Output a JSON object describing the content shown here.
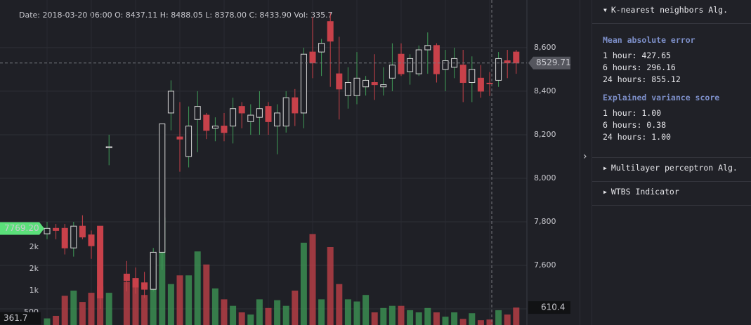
{
  "chart_data": {
    "type": "candlestick",
    "info": "Date: 2018-03-20 06:00 O: 8437.11 H: 8488.05 L: 8378.00 C: 8433.90 Vol: 335.7",
    "open": [
      7745,
      7770,
      7770,
      7680,
      7780,
      7740,
      7780,
      8140,
      null,
      7560,
      7540,
      7520,
      7490,
      7660,
      8300,
      8190,
      8100,
      8270,
      8290,
      8230,
      8240,
      8240,
      8330,
      8260,
      8280,
      8330,
      8240,
      8240,
      8370,
      8300,
      8580,
      8580,
      8720,
      8480,
      8380,
      8380,
      8420,
      8440,
      8420,
      8460,
      8570,
      8490,
      8480,
      8590,
      8610,
      8500,
      8510,
      8520,
      8440,
      8460,
      8437.11,
      8450,
      8540,
      8580
    ],
    "high": [
      7800,
      7790,
      7790,
      7800,
      7830,
      7760,
      7780,
      8200,
      null,
      7620,
      7590,
      7570,
      7680,
      8250,
      8450,
      8350,
      8330,
      8400,
      8300,
      8280,
      8300,
      8370,
      8350,
      8340,
      8400,
      8350,
      8340,
      8400,
      8410,
      8600,
      8740,
      8640,
      8760,
      8650,
      8510,
      8580,
      8470,
      8570,
      8510,
      8620,
      8620,
      8570,
      8610,
      8670,
      8620,
      8590,
      8600,
      8590,
      8560,
      8520,
      8488.05,
      8580,
      8590,
      8590
    ],
    "low": [
      7720,
      7720,
      7650,
      7640,
      7720,
      7630,
      7400,
      8060,
      null,
      7480,
      7470,
      7450,
      7480,
      7580,
      8220,
      8030,
      8050,
      8120,
      8180,
      8170,
      8170,
      8160,
      8230,
      8200,
      8200,
      8200,
      8110,
      8210,
      8240,
      8230,
      8460,
      8470,
      8420,
      8270,
      8320,
      8340,
      8380,
      8360,
      8380,
      8400,
      8470,
      8430,
      8470,
      8480,
      8440,
      8400,
      8460,
      8350,
      8350,
      8370,
      8378,
      8420,
      8460,
      8480
    ],
    "close": [
      7770,
      7760,
      7680,
      7780,
      7730,
      7690,
      7450,
      8145,
      null,
      7530,
      7500,
      7490,
      7660,
      8250,
      8400,
      8180,
      8240,
      8330,
      8220,
      8240,
      8210,
      8320,
      8300,
      8290,
      8320,
      8260,
      8300,
      8370,
      8300,
      8570,
      8530,
      8620,
      8630,
      8410,
      8440,
      8460,
      8450,
      8430,
      8430,
      8520,
      8480,
      8550,
      8590,
      8610,
      8480,
      8540,
      8550,
      8440,
      8500,
      8400,
      8433.9,
      8550,
      8530,
      8529.71
    ],
    "volume": [
      361.7,
      420,
      880,
      1000,
      740,
      950,
      1100,
      950,
      null,
      1200,
      1150,
      900,
      1750,
      2680,
      1150,
      1350,
      1350,
      1900,
      1600,
      1050,
      800,
      650,
      500,
      450,
      800,
      600,
      780,
      650,
      1000,
      2100,
      2300,
      800,
      2000,
      1150,
      800,
      750,
      900,
      500,
      600,
      650,
      650,
      550,
      500,
      600,
      500,
      400,
      500,
      350,
      480,
      320,
      335.7,
      550,
      450,
      610.4
    ],
    "up_color": "#3f9b57",
    "down_color": "#c8414a",
    "ylim": [
      7284,
      8819
    ],
    "yticks": [
      {
        "value": 7400,
        "label": "7,400"
      },
      {
        "value": 7600,
        "label": "7,600"
      },
      {
        "value": 7800,
        "label": "7,800"
      },
      {
        "value": 8000,
        "label": "8,000"
      },
      {
        "value": 8200,
        "label": "8,200"
      },
      {
        "value": 8400,
        "label": "8,400"
      },
      {
        "value": 8600,
        "label": "8,600"
      }
    ],
    "volume_ylim": [
      0,
      7677
    ],
    "volume_yticks": [
      {
        "value": 500,
        "label": "500"
      },
      {
        "value": 1000,
        "label": "1k"
      },
      {
        "value": 1500,
        "label": "2k"
      },
      {
        "value": 2000,
        "label": "2k"
      }
    ],
    "grid": true,
    "last_price": 8529.71,
    "left_price_marker": {
      "value": 7769.2,
      "label": "7769.20"
    },
    "left_volume_marker": 361.7,
    "right_volume_marker": 610.4
  },
  "panel": {
    "sections": [
      {
        "title": "K-nearest neighbors Alg.",
        "groups": [
          {
            "heading": "Mean absolute error",
            "rows": [
              "1 hour: 427.65",
              "6 hours: 296.16",
              "24 hours: 855.12"
            ]
          },
          {
            "heading": "Explained variance score",
            "rows": [
              "1 hour: 1.00",
              "6 hours: 0.38",
              "24 hours: 1.00"
            ]
          }
        ]
      },
      {
        "title": "Multilayer perceptron Alg."
      },
      {
        "title": "WTBS Indicator"
      }
    ]
  }
}
